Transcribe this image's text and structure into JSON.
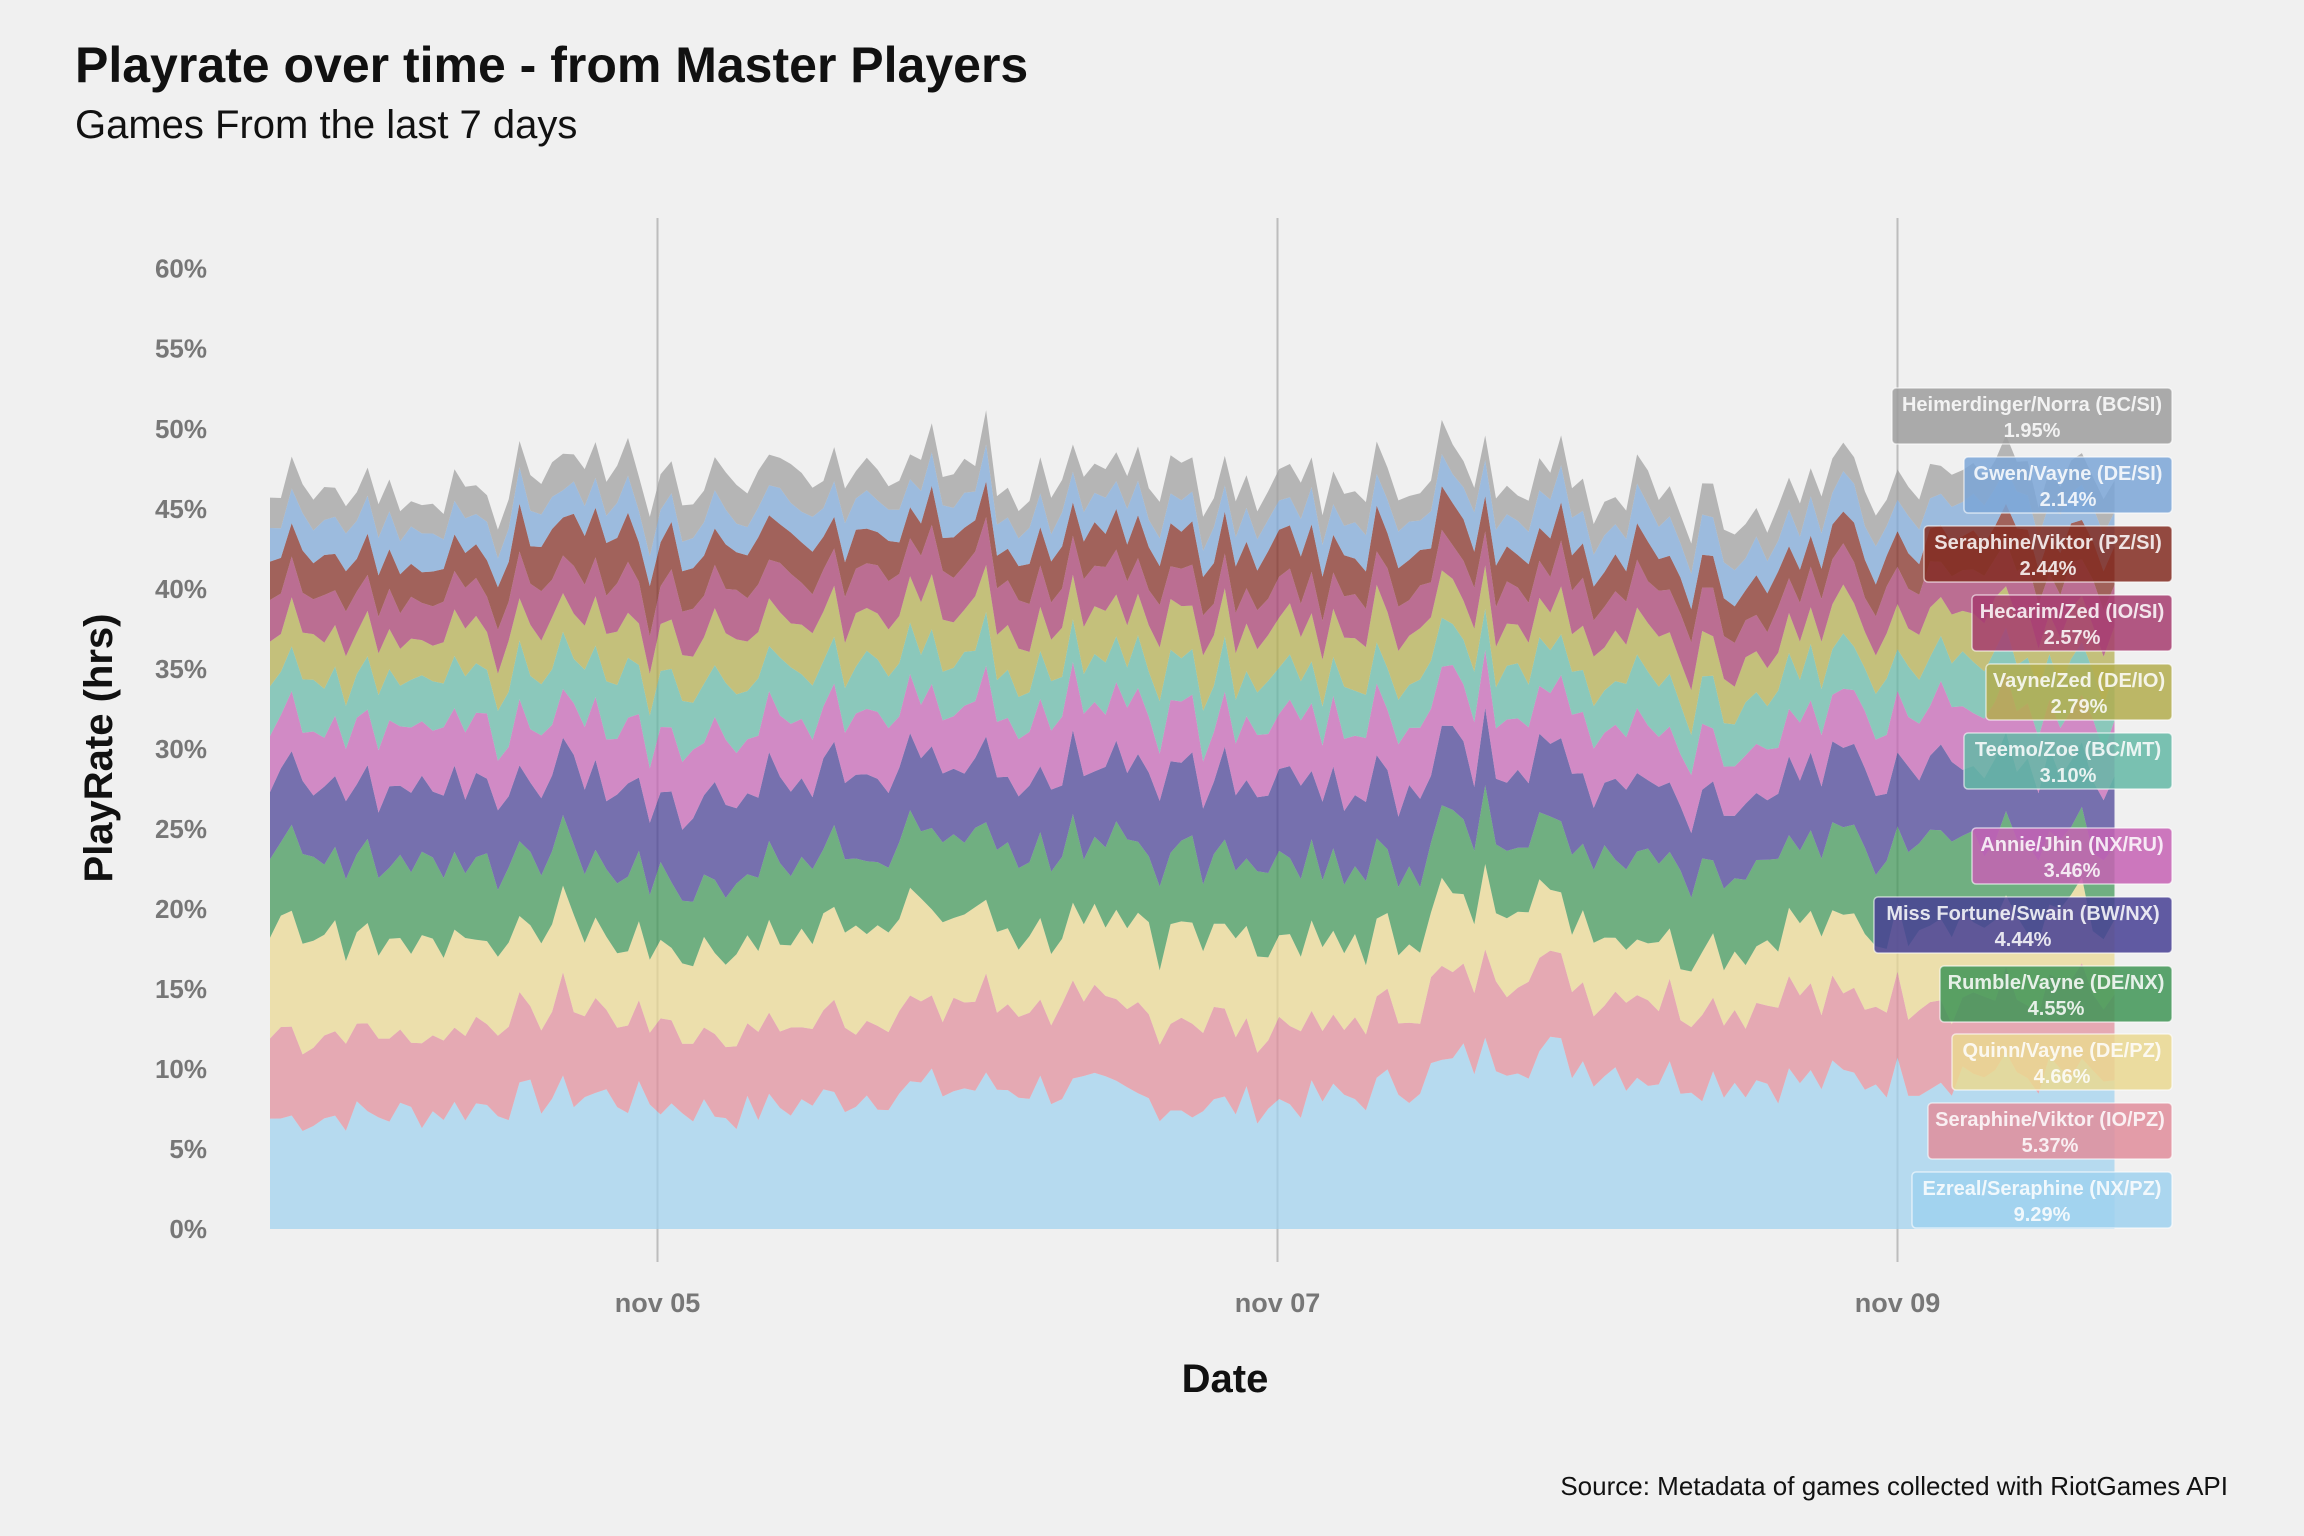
{
  "chart_data": {
    "type": "area",
    "stacked": true,
    "title": "Playrate over time - from Master Players",
    "subtitle": "Games From the last 7 days",
    "xlabel": "Date",
    "ylabel": "PlayRate (hrs)",
    "caption": "Source: Metadata of games collected with RiotGames API",
    "x_ticks": [
      {
        "label": "nov 05",
        "value": 1.25
      },
      {
        "label": "nov 07",
        "value": 3.25
      },
      {
        "label": "nov 09",
        "value": 5.25
      }
    ],
    "y_ticks": [
      "0%",
      "5%",
      "10%",
      "15%",
      "20%",
      "25%",
      "30%",
      "35%",
      "40%",
      "45%",
      "50%",
      "55%",
      "60%"
    ],
    "ylim": [
      0,
      60
    ],
    "xlim": [
      0,
      6.2
    ],
    "x_unit": "days",
    "grid": {
      "vertical": true,
      "horizontal": false
    },
    "series": [
      {
        "name": "Ezreal/Seraphine (NX/PZ)",
        "final_label": "9.29%",
        "color": "#9fd1ee"
      },
      {
        "name": "Seraphine/Viktor (IO/PZ)",
        "final_label": "5.37%",
        "color": "#e08d9b"
      },
      {
        "name": "Quinn/Vayne (DE/PZ)",
        "final_label": "4.66%",
        "color": "#ead891"
      },
      {
        "name": "Rumble/Vayne (DE/NX)",
        "final_label": "4.55%",
        "color": "#3f9556"
      },
      {
        "name": "Miss Fortune/Swain (BW/NX)",
        "final_label": "4.44%",
        "color": "#473f94"
      },
      {
        "name": "Annie/Jhin (NX/RU)",
        "final_label": "3.46%",
        "color": "#c562b4"
      },
      {
        "name": "Teemo/Zoe (BC/MT)",
        "final_label": "3.10%",
        "color": "#64b9a6"
      },
      {
        "name": "Vayne/Zed (DE/IO)",
        "final_label": "2.79%",
        "color": "#b3ad4e"
      },
      {
        "name": "Hecarim/Zed (IO/SI)",
        "final_label": "2.57%",
        "color": "#a63c6e"
      },
      {
        "name": "Seraphine/Viktor (PZ/SI)",
        "final_label": "2.44%",
        "color": "#822b21"
      },
      {
        "name": "Gwen/Vayne (DE/SI)",
        "final_label": "2.14%",
        "color": "#7ba6d7"
      },
      {
        "name": "Heimerdinger/Norra (BC/SI)",
        "final_label": "1.95%",
        "color": "#9e9e9e"
      }
    ],
    "sample_x": [
      0.0,
      0.5,
      1.0,
      1.5,
      2.0,
      2.5,
      3.0,
      3.5,
      4.0,
      4.5,
      5.0,
      5.5,
      5.95
    ],
    "sample_values": [
      [
        6.9,
        7.3,
        8.5,
        7.2,
        8.7,
        8.9,
        7.6,
        8.2,
        11.3,
        9.6,
        9.2,
        9.9,
        9.29
      ],
      [
        5.0,
        4.6,
        5.7,
        4.8,
        5.3,
        5.6,
        5.1,
        4.5,
        5.6,
        4.6,
        5.4,
        5.1,
        5.37
      ],
      [
        6.3,
        5.9,
        5.3,
        5.1,
        6.4,
        4.7,
        5.6,
        5.0,
        4.6,
        3.7,
        4.3,
        4.8,
        4.66
      ],
      [
        4.9,
        4.7,
        4.8,
        4.4,
        4.6,
        4.8,
        4.8,
        4.8,
        4.5,
        5.4,
        5.0,
        5.3,
        4.55
      ],
      [
        4.2,
        4.7,
        4.9,
        5.4,
        5.1,
        4.4,
        5.2,
        5.0,
        4.6,
        4.4,
        4.4,
        4.8,
        4.44
      ],
      [
        3.5,
        3.7,
        3.6,
        3.8,
        3.7,
        4.0,
        3.3,
        4.2,
        3.5,
        3.7,
        3.2,
        3.5,
        3.46
      ],
      [
        3.1,
        3.0,
        3.3,
        3.4,
        3.1,
        2.8,
        3.1,
        2.8,
        3.0,
        2.9,
        3.2,
        3.0,
        3.1
      ],
      [
        2.8,
        2.6,
        2.9,
        3.2,
        3.0,
        2.9,
        3.0,
        3.2,
        2.6,
        2.8,
        2.6,
        2.9,
        2.79
      ],
      [
        2.6,
        2.5,
        2.8,
        2.7,
        2.7,
        2.8,
        2.3,
        2.4,
        2.5,
        2.8,
        2.5,
        2.6,
        2.57
      ],
      [
        2.4,
        2.2,
        2.9,
        2.6,
        2.2,
        2.3,
        2.6,
        2.6,
        2.4,
        2.1,
        2.2,
        2.3,
        2.44
      ],
      [
        2.1,
        2.2,
        2.0,
        2.1,
        2.1,
        2.0,
        1.9,
        2.2,
        2.1,
        2.3,
        2.2,
        2.1,
        2.14
      ],
      [
        1.9,
        1.8,
        2.0,
        2.4,
        1.7,
        2.0,
        2.1,
        1.9,
        1.8,
        1.9,
        2.0,
        1.8,
        1.95
      ]
    ]
  }
}
